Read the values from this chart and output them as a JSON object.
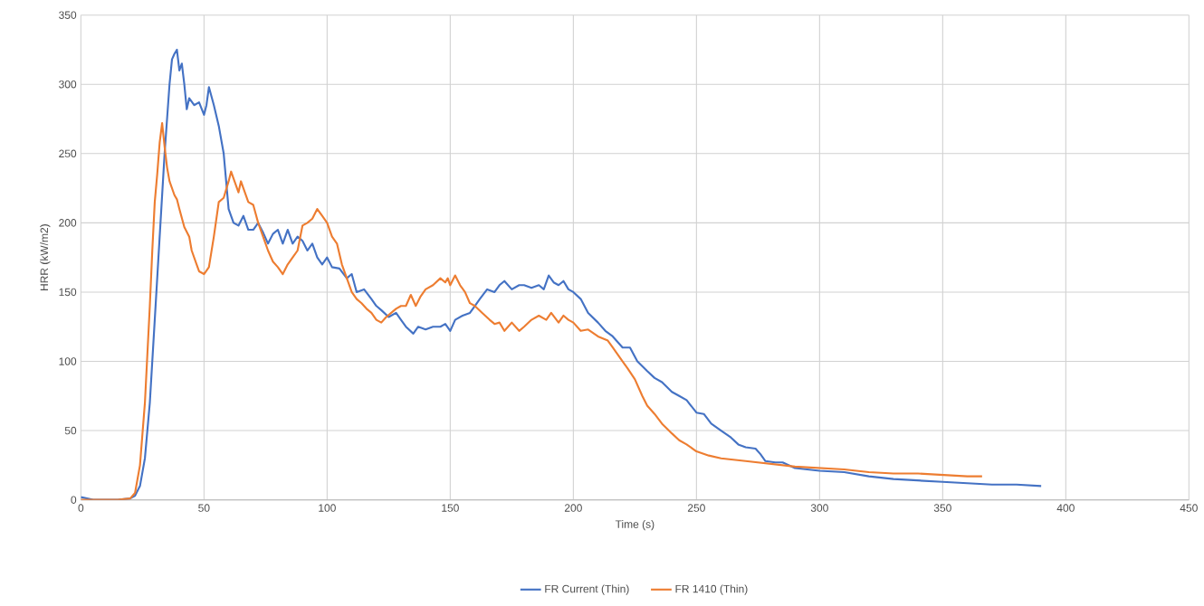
{
  "chart_data": {
    "type": "line",
    "xlabel": "Time (s)",
    "ylabel": "HRR (kW/m2)",
    "xlim": [
      0,
      450
    ],
    "ylim": [
      0,
      350
    ],
    "xticks": [
      0,
      50,
      100,
      150,
      200,
      250,
      300,
      350,
      400,
      450
    ],
    "yticks": [
      0,
      50,
      100,
      150,
      200,
      250,
      300,
      350
    ],
    "grid": true,
    "legend": "bottom",
    "marker": "none",
    "line_style": "solid",
    "series": [
      {
        "name": "FR Current (Thin)",
        "color": "#4472c4",
        "x": [
          0,
          5,
          10,
          15,
          20,
          22,
          24,
          26,
          28,
          30,
          32,
          34,
          36,
          37,
          38,
          39,
          40,
          41,
          42,
          43,
          44,
          46,
          48,
          50,
          51,
          52,
          54,
          56,
          58,
          59,
          60,
          62,
          64,
          66,
          68,
          70,
          72,
          74,
          76,
          78,
          80,
          82,
          84,
          86,
          88,
          90,
          92,
          94,
          96,
          98,
          100,
          102,
          105,
          108,
          110,
          112,
          115,
          118,
          120,
          122,
          125,
          128,
          130,
          132,
          135,
          137,
          140,
          143,
          146,
          148,
          150,
          152,
          155,
          158,
          160,
          162,
          165,
          168,
          170,
          172,
          175,
          178,
          180,
          183,
          186,
          188,
          190,
          192,
          194,
          196,
          198,
          200,
          203,
          206,
          210,
          213,
          216,
          220,
          223,
          226,
          230,
          233,
          236,
          240,
          243,
          246,
          250,
          253,
          256,
          260,
          264,
          267,
          270,
          274,
          276,
          278,
          282,
          285,
          290,
          295,
          300,
          310,
          320,
          330,
          340,
          350,
          360,
          370,
          380,
          390
        ],
        "values": [
          2,
          0,
          0,
          0,
          1,
          3,
          10,
          30,
          70,
          130,
          190,
          250,
          300,
          318,
          322,
          325,
          310,
          315,
          300,
          282,
          290,
          285,
          287,
          278,
          285,
          298,
          285,
          270,
          250,
          230,
          210,
          200,
          198,
          205,
          195,
          195,
          200,
          193,
          185,
          192,
          195,
          185,
          195,
          185,
          190,
          187,
          180,
          185,
          175,
          170,
          175,
          168,
          167,
          160,
          163,
          150,
          152,
          145,
          140,
          137,
          132,
          135,
          130,
          125,
          120,
          125,
          123,
          125,
          125,
          127,
          122,
          130,
          133,
          135,
          140,
          145,
          152,
          150,
          155,
          158,
          152,
          155,
          155,
          153,
          155,
          152,
          162,
          157,
          155,
          158,
          152,
          150,
          145,
          135,
          128,
          122,
          118,
          110,
          110,
          100,
          93,
          88,
          85,
          78,
          75,
          72,
          63,
          62,
          55,
          50,
          45,
          40,
          38,
          37,
          33,
          28,
          27,
          27,
          23,
          22,
          21,
          20,
          17,
          15,
          14,
          13,
          12,
          11,
          11,
          10
        ]
      },
      {
        "name": "FR 1410 (Thin)",
        "color": "#ed7d31",
        "x": [
          0,
          10,
          15,
          20,
          22,
          24,
          26,
          28,
          29,
          30,
          31,
          32,
          33,
          34,
          35,
          36,
          37,
          38,
          39,
          40,
          42,
          44,
          45,
          47,
          48,
          50,
          52,
          54,
          56,
          58,
          60,
          61,
          62,
          64,
          65,
          66,
          68,
          70,
          72,
          74,
          76,
          78,
          80,
          82,
          84,
          86,
          88,
          90,
          92,
          94,
          96,
          98,
          100,
          102,
          104,
          106,
          108,
          110,
          112,
          114,
          116,
          118,
          120,
          122,
          124,
          126,
          128,
          130,
          132,
          134,
          136,
          138,
          140,
          143,
          146,
          148,
          149,
          150,
          152,
          154,
          156,
          158,
          160,
          163,
          166,
          168,
          170,
          172,
          175,
          178,
          180,
          183,
          186,
          189,
          191,
          194,
          196,
          198,
          200,
          203,
          206,
          210,
          214,
          216,
          218,
          220,
          222,
          225,
          228,
          230,
          233,
          236,
          240,
          243,
          246,
          250,
          255,
          260,
          270,
          280,
          290,
          300,
          310,
          320,
          330,
          340,
          350,
          360,
          366
        ],
        "values": [
          0,
          0,
          0,
          1,
          5,
          25,
          70,
          140,
          180,
          215,
          235,
          258,
          272,
          255,
          240,
          230,
          225,
          220,
          217,
          210,
          197,
          190,
          180,
          170,
          165,
          163,
          168,
          190,
          215,
          218,
          230,
          237,
          232,
          222,
          230,
          225,
          215,
          213,
          200,
          190,
          180,
          172,
          168,
          163,
          170,
          175,
          180,
          198,
          200,
          203,
          210,
          205,
          200,
          190,
          185,
          170,
          160,
          150,
          145,
          142,
          138,
          135,
          130,
          128,
          132,
          135,
          138,
          140,
          140,
          148,
          140,
          147,
          152,
          155,
          160,
          157,
          160,
          155,
          162,
          155,
          150,
          142,
          140,
          135,
          130,
          127,
          128,
          122,
          128,
          122,
          125,
          130,
          133,
          130,
          135,
          128,
          133,
          130,
          128,
          122,
          123,
          118,
          115,
          110,
          105,
          100,
          95,
          87,
          75,
          68,
          62,
          55,
          48,
          43,
          40,
          35,
          32,
          30,
          28,
          26,
          24,
          23,
          22,
          20,
          19,
          19,
          18,
          17,
          17
        ]
      }
    ]
  }
}
